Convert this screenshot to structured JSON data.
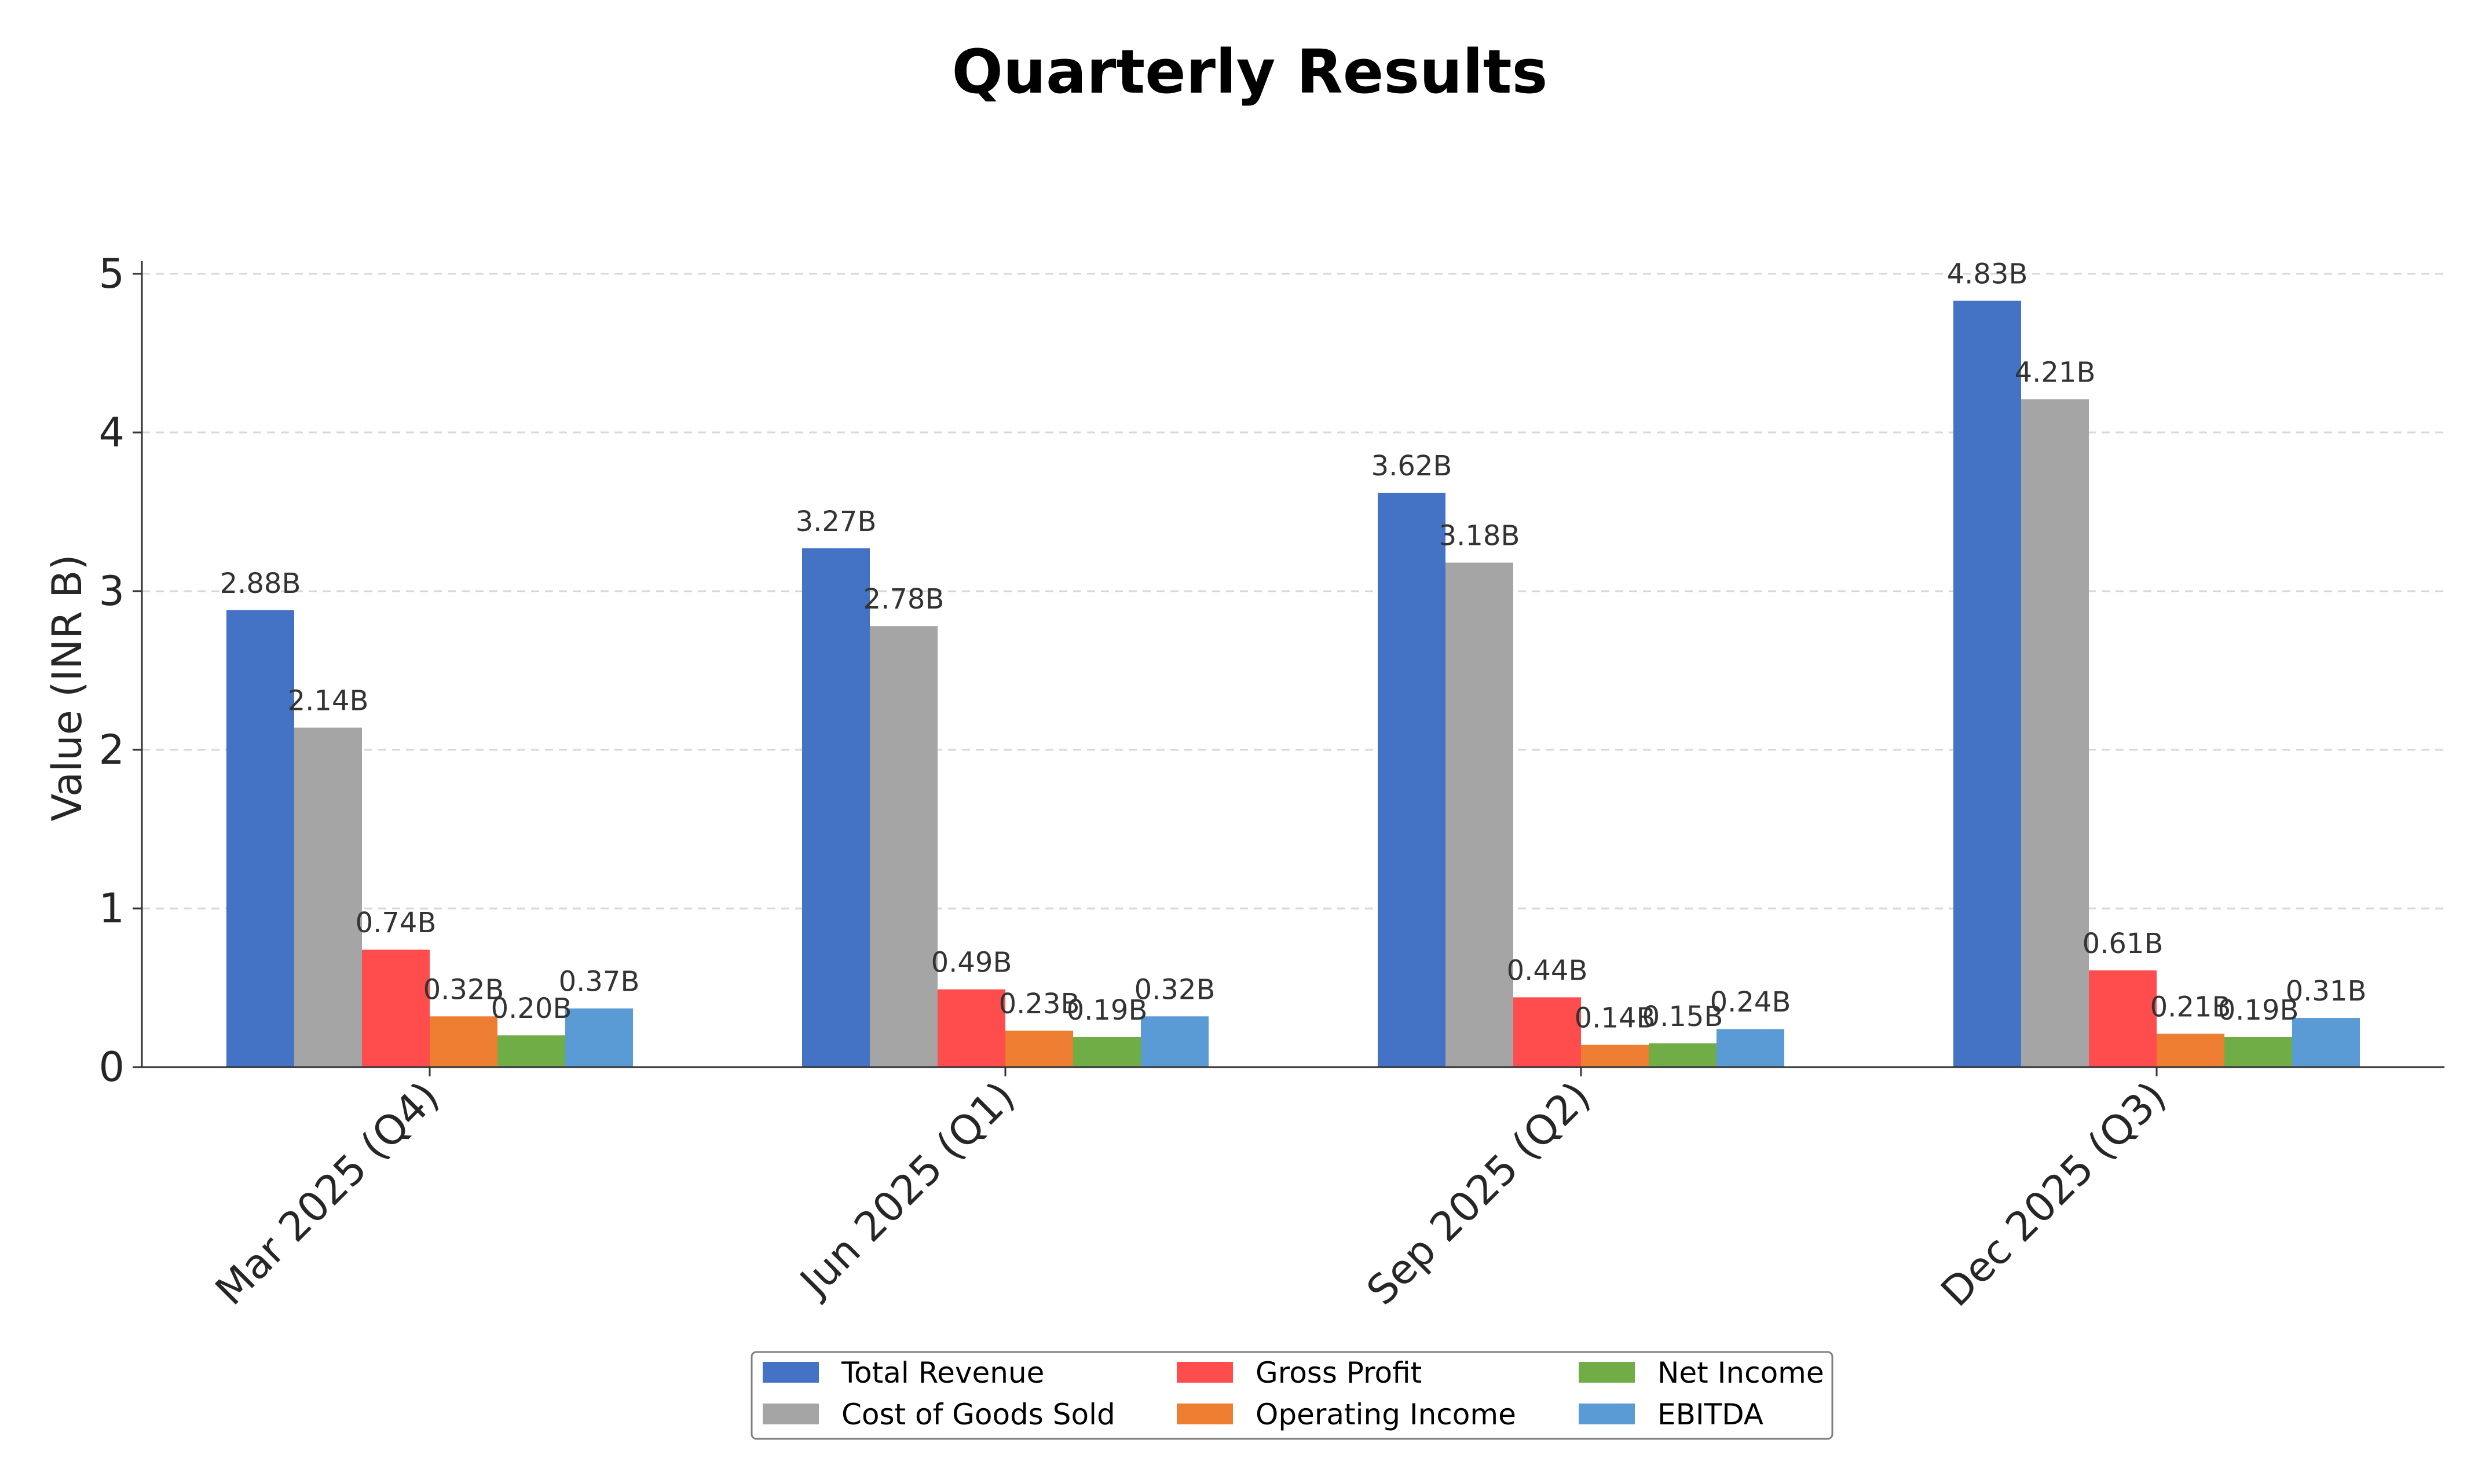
{
  "chart_data": {
    "type": "bar",
    "title": "Quarterly Results",
    "xlabel": "",
    "ylabel": "Value (INR B)",
    "ylim": [
      0,
      5.08
    ],
    "yticks": [
      0,
      1,
      2,
      3,
      4,
      5
    ],
    "grid": "horizontal dashed",
    "legend_position": "bottom-center",
    "categories": [
      "Mar 2025 (Q4)",
      "Jun 2025 (Q1)",
      "Sep 2025 (Q2)",
      "Dec 2025 (Q3)"
    ],
    "series": [
      {
        "name": "Total Revenue",
        "color": "#4472C4",
        "values": [
          2.88,
          3.27,
          3.62,
          4.83
        ],
        "labels": [
          "2.88B",
          "3.27B",
          "3.62B",
          "4.83B"
        ]
      },
      {
        "name": "Cost of Goods Sold",
        "color": "#A5A5A5",
        "values": [
          2.14,
          2.78,
          3.18,
          4.21
        ],
        "labels": [
          "2.14B",
          "2.78B",
          "3.18B",
          "4.21B"
        ]
      },
      {
        "name": "Gross Profit",
        "color": "#FF4C4C",
        "values": [
          0.74,
          0.49,
          0.44,
          0.61
        ],
        "labels": [
          "0.74B",
          "0.49B",
          "0.44B",
          "0.61B"
        ]
      },
      {
        "name": "Operating Income",
        "color": "#ED7D31",
        "values": [
          0.32,
          0.23,
          0.14,
          0.21
        ],
        "labels": [
          "0.32B",
          "0.23B",
          "0.14B",
          "0.21B"
        ]
      },
      {
        "name": "Net Income",
        "color": "#70AD47",
        "values": [
          0.2,
          0.19,
          0.15,
          0.19
        ],
        "labels": [
          "0.20B",
          "0.19B",
          "0.15B",
          "0.19B"
        ]
      },
      {
        "name": "EBITDA",
        "color": "#5B9BD5",
        "values": [
          0.37,
          0.32,
          0.24,
          0.31
        ],
        "labels": [
          "0.37B",
          "0.32B",
          "0.24B",
          "0.31B"
        ]
      }
    ]
  }
}
